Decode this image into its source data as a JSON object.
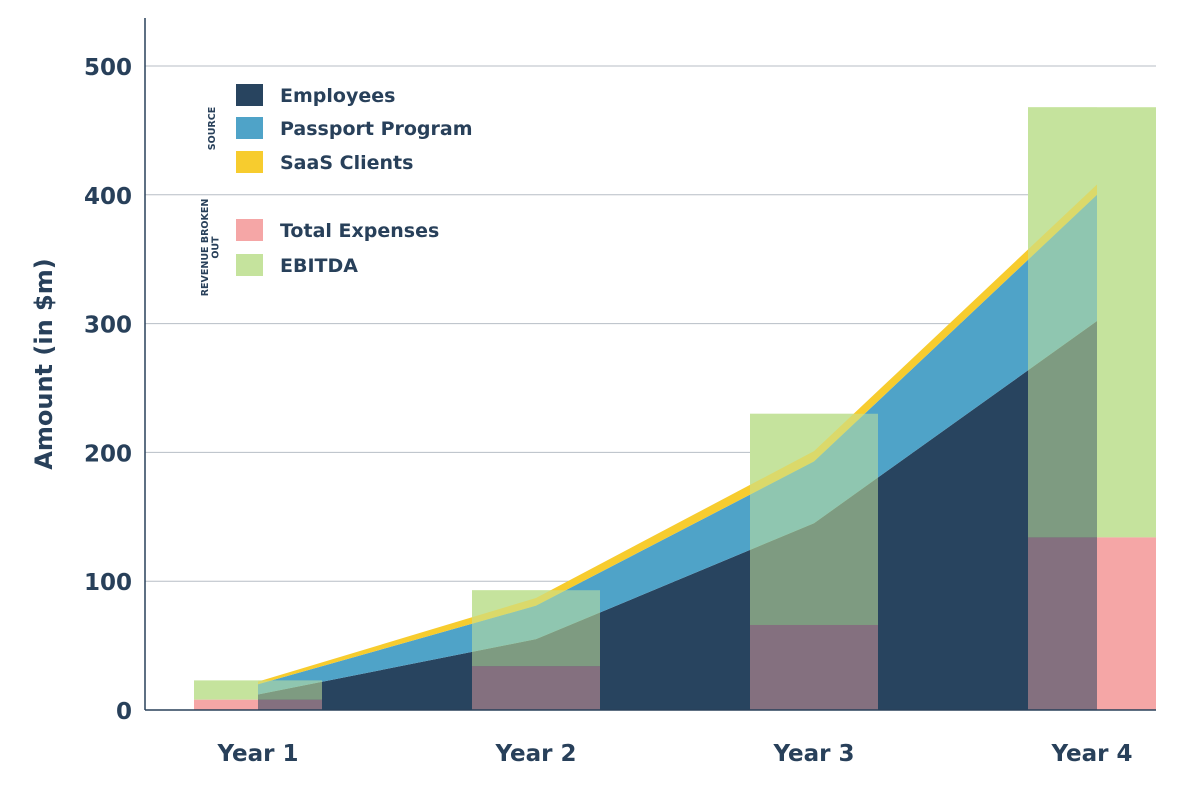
{
  "chart_data": {
    "type": "area",
    "ylabel": "Amount (in $m)",
    "ylim": [
      0,
      500
    ],
    "yticks": [
      0,
      100,
      200,
      300,
      400,
      500
    ],
    "grid": "horizontal",
    "categories": [
      "Year 1",
      "Year 2",
      "Year 3",
      "Year 4"
    ],
    "legend_groups": [
      {
        "label": "SOURCE",
        "items": [
          "Employees",
          "Passport Program",
          "SaaS Clients"
        ]
      },
      {
        "label": "REVENUE BROKEN OUT",
        "items": [
          "Total Expenses",
          "EBITDA"
        ]
      }
    ],
    "stacked_area": {
      "series": [
        {
          "name": "Employees",
          "color": "#28445f",
          "values": [
            12,
            55,
            145,
            302
          ]
        },
        {
          "name": "Passport Program",
          "color": "#4fa3c8",
          "values": [
            8,
            26,
            48,
            98
          ]
        },
        {
          "name": "SaaS Clients",
          "color": "#f7cc2e",
          "values": [
            2,
            6,
            8,
            8
          ]
        }
      ]
    },
    "bars": {
      "series": [
        {
          "name": "Total Expenses",
          "color": "#f5a6a6",
          "values": [
            8,
            34,
            66,
            134
          ]
        },
        {
          "name": "EBITDA",
          "color": "#c5e39d",
          "values": [
            15,
            59,
            164,
            334
          ]
        }
      ]
    }
  }
}
